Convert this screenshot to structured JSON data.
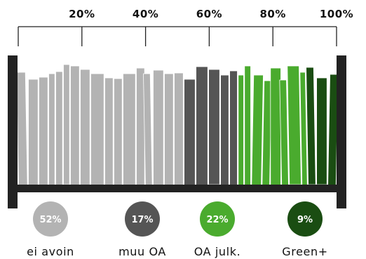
{
  "chart_data": {
    "type": "bar",
    "title": "",
    "xlabel": "",
    "ylabel": "",
    "axis": {
      "ticks": [
        {
          "value": 20,
          "label": "20%"
        },
        {
          "value": 40,
          "label": "40%"
        },
        {
          "value": 60,
          "label": "60%"
        },
        {
          "value": 80,
          "label": "80%"
        },
        {
          "value": 100,
          "label": "100%"
        }
      ],
      "range": [
        0,
        100
      ]
    },
    "categories": [
      "ei avoin",
      "muu OA",
      "OA julk.",
      "Green+"
    ],
    "values": [
      52,
      17,
      22,
      9
    ],
    "value_labels": [
      "52%",
      "17%",
      "22%",
      "9%"
    ],
    "colors": [
      "#b3b3b3",
      "#555555",
      "#4aab2e",
      "#1a4d12"
    ],
    "shelf_color": "#222222"
  }
}
